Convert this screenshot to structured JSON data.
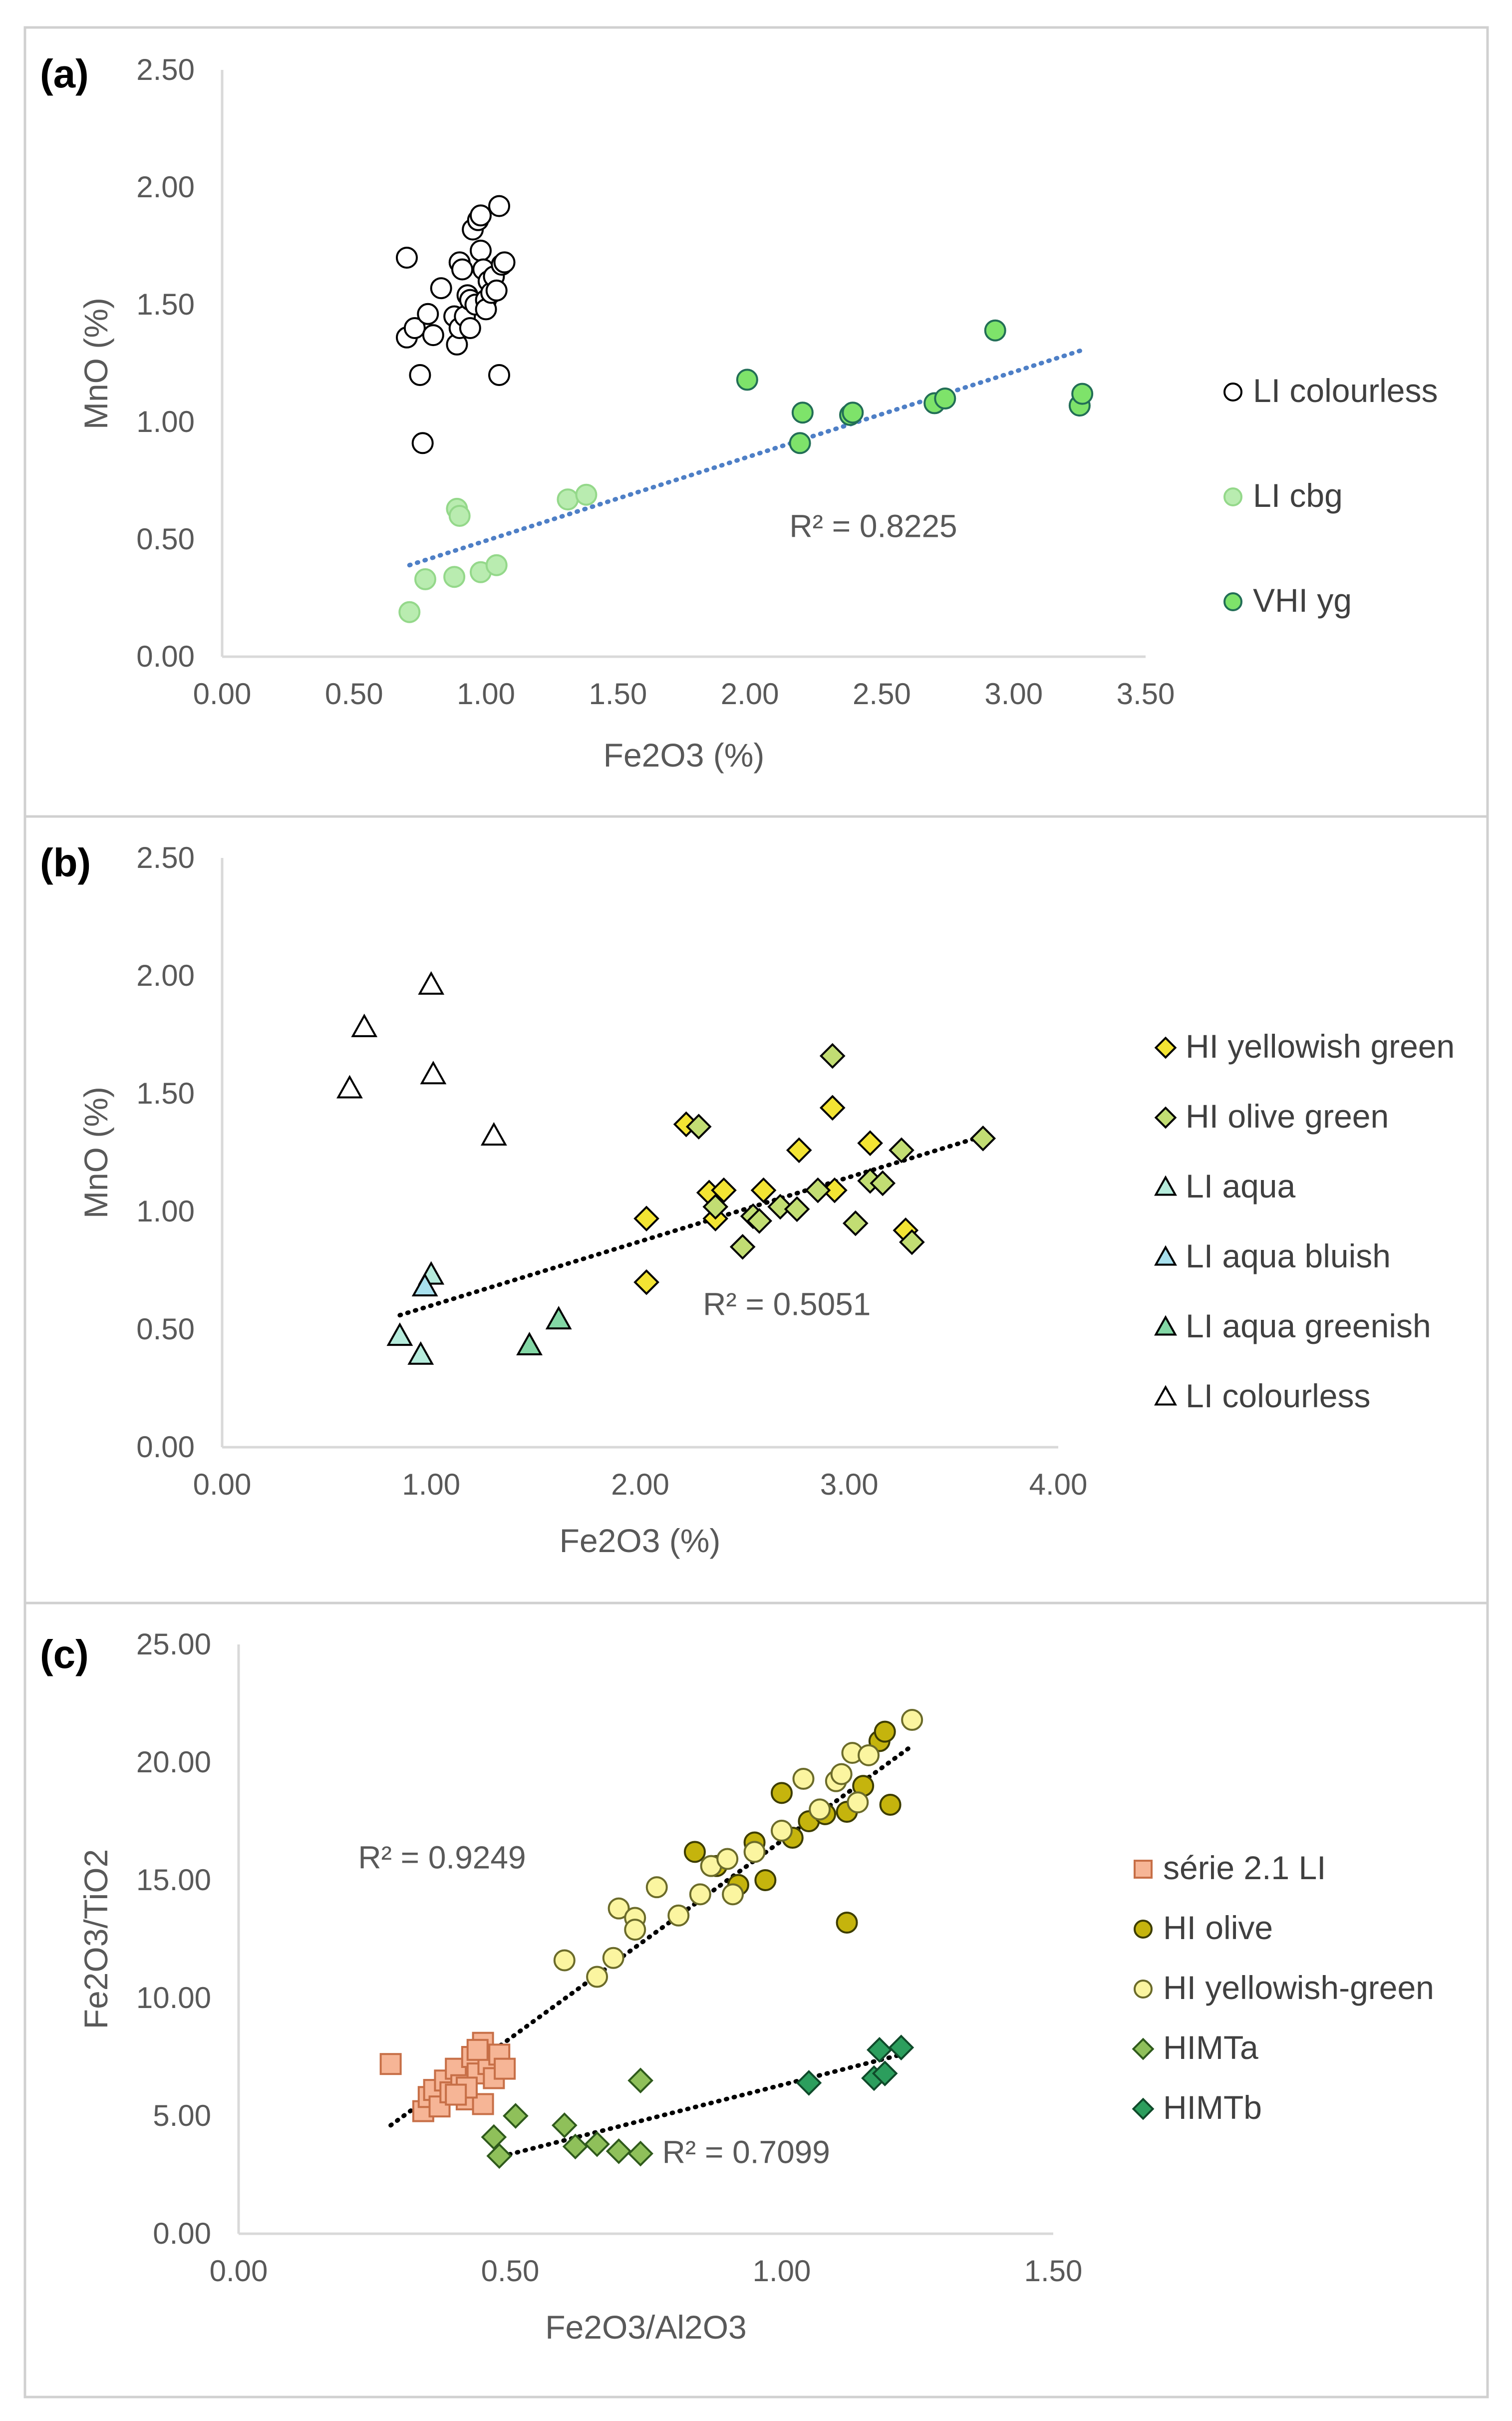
{
  "chart_data": [
    {
      "type": "scatter",
      "panel_label": "(a)",
      "xlabel": "Fe2O3 (%)",
      "ylabel": "MnO (%)",
      "xlim": [
        0,
        3.5
      ],
      "ylim": [
        0,
        2.5
      ],
      "x_ticks": [
        "0.00",
        "0.50",
        "1.00",
        "1.50",
        "2.00",
        "2.50",
        "3.00",
        "3.50"
      ],
      "y_ticks": [
        "0.00",
        "0.50",
        "1.00",
        "1.50",
        "2.00",
        "2.50"
      ],
      "grid": false,
      "legend_position": "right",
      "series": [
        {
          "name": "LI colourless",
          "marker": "circle",
          "fill": "#ffffff",
          "stroke": "#000000",
          "points": [
            [
              0.7,
              1.7
            ],
            [
              0.7,
              1.36
            ],
            [
              0.73,
              1.4
            ],
            [
              0.75,
              1.2
            ],
            [
              0.76,
              0.91
            ],
            [
              0.78,
              1.46
            ],
            [
              0.8,
              1.37
            ],
            [
              0.83,
              1.57
            ],
            [
              0.88,
              1.45
            ],
            [
              0.89,
              1.33
            ],
            [
              0.9,
              1.4
            ],
            [
              0.9,
              1.68
            ],
            [
              0.91,
              1.65
            ],
            [
              0.92,
              1.45
            ],
            [
              0.93,
              1.54
            ],
            [
              0.94,
              1.52
            ],
            [
              0.94,
              1.4
            ],
            [
              0.95,
              1.82
            ],
            [
              0.96,
              1.5
            ],
            [
              0.97,
              1.86
            ],
            [
              0.98,
              1.88
            ],
            [
              0.98,
              1.73
            ],
            [
              0.99,
              1.65
            ],
            [
              1.0,
              1.52
            ],
            [
              1.0,
              1.48
            ],
            [
              1.01,
              1.6
            ],
            [
              1.02,
              1.55
            ],
            [
              1.03,
              1.62
            ],
            [
              1.04,
              1.56
            ],
            [
              1.05,
              1.92
            ],
            [
              1.05,
              1.2
            ],
            [
              1.06,
              1.67
            ],
            [
              1.07,
              1.68
            ]
          ]
        },
        {
          "name": "LI cbg",
          "marker": "circle",
          "fill": "#b9ecb0",
          "stroke": "#94d88a",
          "points": [
            [
              0.71,
              0.19
            ],
            [
              0.77,
              0.33
            ],
            [
              0.88,
              0.34
            ],
            [
              0.89,
              0.63
            ],
            [
              0.9,
              0.6
            ],
            [
              0.98,
              0.36
            ],
            [
              1.04,
              0.39
            ],
            [
              1.31,
              0.67
            ],
            [
              1.38,
              0.69
            ]
          ]
        },
        {
          "name": "VHI yg",
          "marker": "circle",
          "fill": "#7ee36a",
          "stroke": "#226e56",
          "points": [
            [
              1.99,
              1.18
            ],
            [
              2.19,
              0.91
            ],
            [
              2.2,
              1.04
            ],
            [
              2.38,
              1.03
            ],
            [
              2.39,
              1.04
            ],
            [
              2.7,
              1.08
            ],
            [
              2.74,
              1.1
            ],
            [
              2.93,
              1.39
            ],
            [
              3.25,
              1.07
            ],
            [
              3.26,
              1.12
            ]
          ]
        }
      ],
      "trendlines": [
        {
          "color": "#4e7fc6",
          "from": [
            0.71,
            0.39
          ],
          "to": [
            3.27,
            1.31
          ],
          "r2_label": "R² = 0.8225",
          "label_at": [
            2.15,
            0.51
          ]
        }
      ]
    },
    {
      "type": "scatter",
      "panel_label": "(b)",
      "xlabel": "Fe2O3 (%)",
      "ylabel": "MnO (%)",
      "xlim": [
        0,
        4
      ],
      "ylim": [
        0,
        2.5
      ],
      "x_ticks": [
        "0.00",
        "1.00",
        "2.00",
        "3.00",
        "4.00"
      ],
      "y_ticks": [
        "0.00",
        "0.50",
        "1.00",
        "1.50",
        "2.00",
        "2.50"
      ],
      "grid": false,
      "legend_position": "right",
      "series": [
        {
          "name": "HI yellowish green",
          "marker": "diamond",
          "fill": "#f3e433",
          "stroke": "#000000",
          "points": [
            [
              2.03,
              0.97
            ],
            [
              2.03,
              0.7
            ],
            [
              2.22,
              1.37
            ],
            [
              2.33,
              1.08
            ],
            [
              2.36,
              0.97
            ],
            [
              2.4,
              1.09
            ],
            [
              2.59,
              1.09
            ],
            [
              2.76,
              1.26
            ],
            [
              2.92,
              1.44
            ],
            [
              2.93,
              1.09
            ],
            [
              3.1,
              1.29
            ],
            [
              3.27,
              0.92
            ]
          ]
        },
        {
          "name": "HI olive green",
          "marker": "diamond",
          "fill": "#c2dd73",
          "stroke": "#000000",
          "points": [
            [
              2.28,
              1.36
            ],
            [
              2.36,
              1.02
            ],
            [
              2.49,
              0.85
            ],
            [
              2.54,
              0.98
            ],
            [
              2.57,
              0.96
            ],
            [
              2.67,
              1.02
            ],
            [
              2.75,
              1.01
            ],
            [
              2.85,
              1.09
            ],
            [
              2.92,
              1.66
            ],
            [
              3.03,
              0.95
            ],
            [
              3.1,
              1.13
            ],
            [
              3.16,
              1.12
            ],
            [
              3.25,
              1.26
            ],
            [
              3.3,
              0.87
            ],
            [
              3.64,
              1.31
            ]
          ]
        },
        {
          "name": "LI aqua",
          "marker": "triangle",
          "fill": "#b6ecdc",
          "stroke": "#000000",
          "points": [
            [
              0.85,
              0.47
            ],
            [
              0.95,
              0.39
            ],
            [
              1.0,
              0.73
            ]
          ]
        },
        {
          "name": "LI aqua bluish",
          "marker": "triangle",
          "fill": "#a8e0ee",
          "stroke": "#000000",
          "points": [
            [
              0.97,
              0.68
            ]
          ]
        },
        {
          "name": "LI aqua greenish",
          "marker": "triangle",
          "fill": "#83d7a5",
          "stroke": "#000000",
          "points": [
            [
              1.47,
              0.43
            ],
            [
              1.61,
              0.54
            ]
          ]
        },
        {
          "name": "LI colourless",
          "marker": "triangle",
          "fill": "#ffffff",
          "stroke": "#000000",
          "points": [
            [
              0.61,
              1.52
            ],
            [
              0.68,
              1.78
            ],
            [
              1.0,
              1.96
            ],
            [
              1.01,
              1.58
            ],
            [
              1.3,
              1.32
            ]
          ]
        }
      ],
      "trendlines": [
        {
          "color": "#000000",
          "from": [
            0.85,
            0.56
          ],
          "to": [
            3.64,
            1.32
          ],
          "r2_label": "R² = 0.5051",
          "label_at": [
            2.3,
            0.56
          ]
        }
      ]
    },
    {
      "type": "scatter",
      "panel_label": "(c)",
      "xlabel": "Fe2O3/Al2O3",
      "ylabel": "Fe2O3/TiO2",
      "xlim": [
        0,
        1.5
      ],
      "ylim": [
        0,
        25
      ],
      "x_ticks": [
        "0.00",
        "0.50",
        "1.00",
        "1.50"
      ],
      "y_ticks": [
        "0.00",
        "5.00",
        "10.00",
        "15.00",
        "20.00",
        "25.00"
      ],
      "grid": false,
      "legend_position": "right",
      "series": [
        {
          "name": "série 2.1 LI",
          "marker": "square",
          "fill": "#f6b596",
          "stroke": "#c76f47",
          "points": [
            [
              0.28,
              7.2
            ],
            [
              0.34,
              5.2
            ],
            [
              0.35,
              5.8
            ],
            [
              0.36,
              6.1
            ],
            [
              0.37,
              5.4
            ],
            [
              0.38,
              6.5
            ],
            [
              0.39,
              6.0
            ],
            [
              0.4,
              7.0
            ],
            [
              0.41,
              6.3
            ],
            [
              0.42,
              5.7
            ],
            [
              0.43,
              7.5
            ],
            [
              0.44,
              6.8
            ],
            [
              0.45,
              5.5
            ],
            [
              0.45,
              8.1
            ],
            [
              0.46,
              7.2
            ],
            [
              0.47,
              6.6
            ],
            [
              0.48,
              7.6
            ],
            [
              0.49,
              7.0
            ],
            [
              0.42,
              6.2
            ],
            [
              0.44,
              7.8
            ],
            [
              0.4,
              5.9
            ]
          ]
        },
        {
          "name": "HI olive",
          "marker": "circle",
          "fill": "#c5b40d",
          "stroke": "#3d3d00",
          "points": [
            [
              0.84,
              16.2
            ],
            [
              0.88,
              15.6
            ],
            [
              0.92,
              14.8
            ],
            [
              0.95,
              16.6
            ],
            [
              0.97,
              15.0
            ],
            [
              1.0,
              18.7
            ],
            [
              1.02,
              16.8
            ],
            [
              1.05,
              17.5
            ],
            [
              1.08,
              17.8
            ],
            [
              1.12,
              17.9
            ],
            [
              1.12,
              13.2
            ],
            [
              1.15,
              19.0
            ],
            [
              1.18,
              20.9
            ],
            [
              1.19,
              21.3
            ],
            [
              1.2,
              18.2
            ]
          ]
        },
        {
          "name": "HI yellowish-green",
          "marker": "circle",
          "fill": "#fbf5a0",
          "stroke": "#6b6b2a",
          "points": [
            [
              0.6,
              11.6
            ],
            [
              0.66,
              10.9
            ],
            [
              0.69,
              11.7
            ],
            [
              0.7,
              13.8
            ],
            [
              0.73,
              13.4
            ],
            [
              0.73,
              12.9
            ],
            [
              0.77,
              14.7
            ],
            [
              0.81,
              13.5
            ],
            [
              0.85,
              14.4
            ],
            [
              0.87,
              15.6
            ],
            [
              0.9,
              15.9
            ],
            [
              0.91,
              14.4
            ],
            [
              0.95,
              16.2
            ],
            [
              1.0,
              17.1
            ],
            [
              1.04,
              19.3
            ],
            [
              1.07,
              18.0
            ],
            [
              1.1,
              19.2
            ],
            [
              1.11,
              19.5
            ],
            [
              1.13,
              20.4
            ],
            [
              1.14,
              18.3
            ],
            [
              1.16,
              20.3
            ],
            [
              1.24,
              21.8
            ]
          ]
        },
        {
          "name": "HIMTa",
          "marker": "diamond",
          "fill": "#8fc05a",
          "stroke": "#2f5a1c",
          "points": [
            [
              0.47,
              4.1
            ],
            [
              0.48,
              3.3
            ],
            [
              0.51,
              5.0
            ],
            [
              0.6,
              4.6
            ],
            [
              0.62,
              3.7
            ],
            [
              0.66,
              3.8
            ],
            [
              0.7,
              3.5
            ],
            [
              0.74,
              6.5
            ],
            [
              0.74,
              3.4
            ]
          ]
        },
        {
          "name": "HIMTb",
          "marker": "diamond",
          "fill": "#2c9e5d",
          "stroke": "#0f4a2a",
          "points": [
            [
              1.05,
              6.4
            ],
            [
              1.17,
              6.6
            ],
            [
              1.18,
              7.8
            ],
            [
              1.19,
              6.8
            ],
            [
              1.22,
              7.9
            ]
          ]
        }
      ],
      "trendlines": [
        {
          "color": "#000000",
          "from": [
            0.28,
            4.6
          ],
          "to": [
            1.24,
            20.7
          ],
          "r2_label": "R² = 0.9249",
          "label_at": [
            0.22,
            15.5
          ]
        },
        {
          "color": "#000000",
          "from": [
            0.47,
            3.2
          ],
          "to": [
            1.22,
            7.6
          ],
          "r2_label": "R² = 0.7099",
          "label_at": [
            0.78,
            3.0
          ]
        }
      ]
    }
  ]
}
